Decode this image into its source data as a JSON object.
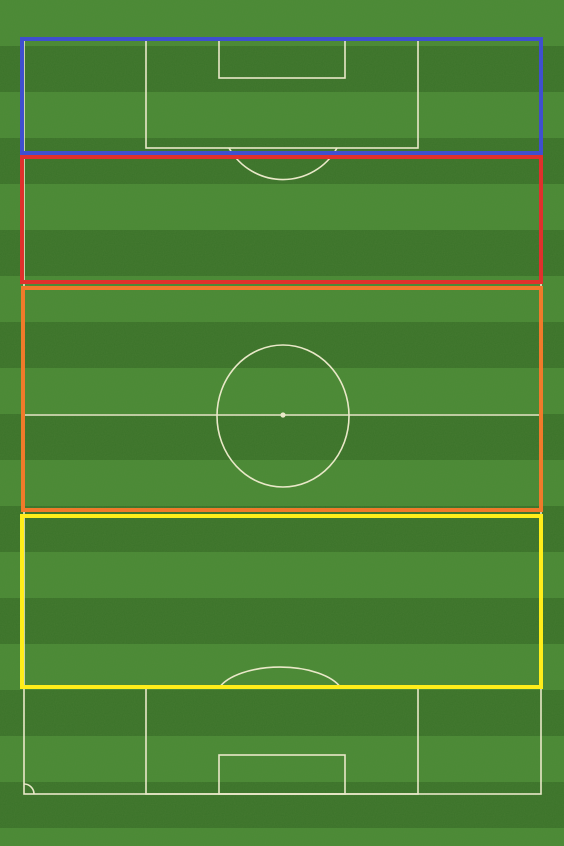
{
  "pitch": {
    "grass_light": "#4a8a35",
    "grass_dark": "#3a7229",
    "line_color": "#e9e8c8"
  },
  "zones": [
    {
      "name": "zone-blue",
      "color": "#3f4fcf"
    },
    {
      "name": "zone-red",
      "color": "#e0302c"
    },
    {
      "name": "zone-orange",
      "color": "#f07a2a"
    },
    {
      "name": "zone-yellow",
      "color": "#ffee1a"
    }
  ]
}
